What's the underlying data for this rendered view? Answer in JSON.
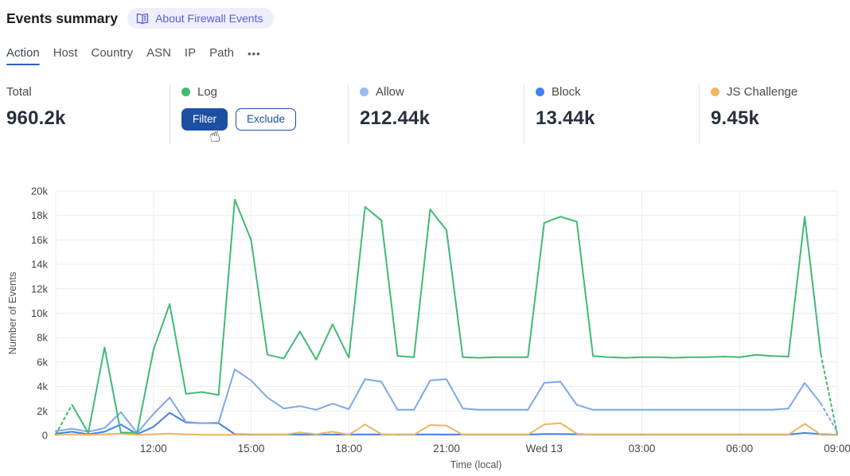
{
  "header": {
    "title": "Events summary",
    "about_badge": "About Firewall Events"
  },
  "tabs": {
    "items": [
      "Action",
      "Host",
      "Country",
      "ASN",
      "IP",
      "Path"
    ],
    "active": "Action",
    "more_label": "•••"
  },
  "stats": {
    "total": {
      "label": "Total",
      "value": "960.2k"
    },
    "cards": [
      {
        "label": "Log",
        "color": "#41ba74",
        "filter_label": "Filter",
        "exclude_label": "Exclude"
      },
      {
        "label": "Allow",
        "color": "#97baf1",
        "value": "212.44k"
      },
      {
        "label": "Block",
        "color": "#3e82ec",
        "value": "13.44k"
      },
      {
        "label": "JS Challenge",
        "color": "#f2b465",
        "value": "9.45k"
      }
    ]
  },
  "chart_data": {
    "type": "line",
    "title": "",
    "xlabel": "Time (local)",
    "ylabel": "Number of Events",
    "ylim": [
      0,
      20000
    ],
    "grid": true,
    "legend_position": "top-stats-row",
    "y_ticks": [
      "0",
      "2k",
      "4k",
      "6k",
      "8k",
      "10k",
      "12k",
      "14k",
      "16k",
      "18k",
      "20k"
    ],
    "x": [
      "09:00",
      "09:30",
      "10:00",
      "10:30",
      "11:00",
      "11:30",
      "12:00",
      "12:30",
      "13:00",
      "13:30",
      "14:00",
      "14:30",
      "15:00",
      "15:30",
      "16:00",
      "16:30",
      "17:00",
      "17:30",
      "18:00",
      "18:30",
      "19:00",
      "19:30",
      "20:00",
      "20:30",
      "21:00",
      "21:30",
      "22:00",
      "22:30",
      "23:00",
      "23:30",
      "00:00",
      "00:30",
      "01:00",
      "01:30",
      "02:00",
      "02:30",
      "03:00",
      "03:30",
      "04:00",
      "04:30",
      "05:00",
      "05:30",
      "06:00",
      "06:30",
      "07:00",
      "07:30",
      "08:00",
      "08:30",
      "09:00"
    ],
    "x_ticks": [
      {
        "index": 6,
        "label": "12:00"
      },
      {
        "index": 12,
        "label": "15:00"
      },
      {
        "index": 18,
        "label": "18:00"
      },
      {
        "index": 24,
        "label": "21:00"
      },
      {
        "index": 30,
        "label": "Wed 13"
      },
      {
        "index": 36,
        "label": "03:00"
      },
      {
        "index": 42,
        "label": "06:00"
      },
      {
        "index": 48,
        "label": "09:00"
      }
    ],
    "series": [
      {
        "name": "Log",
        "color": "#41ba74",
        "dashed_start": true,
        "dashed_end": true,
        "values": [
          100,
          2500,
          200,
          7200,
          250,
          200,
          7000,
          10750,
          3400,
          3550,
          3300,
          19300,
          16000,
          6600,
          6300,
          8500,
          6200,
          9100,
          6350,
          18700,
          17600,
          6500,
          6400,
          18500,
          16800,
          6400,
          6350,
          6400,
          6400,
          6400,
          17400,
          17900,
          17500,
          6500,
          6400,
          6350,
          6400,
          6400,
          6350,
          6400,
          6400,
          6450,
          6400,
          6600,
          6500,
          6450,
          17900,
          6600,
          100
        ]
      },
      {
        "name": "Allow",
        "color": "#7fa7ec",
        "dashed_start": false,
        "dashed_end": true,
        "values": [
          350,
          550,
          300,
          600,
          1900,
          200,
          1750,
          3100,
          1100,
          1000,
          1050,
          5400,
          4500,
          3100,
          2200,
          2400,
          2100,
          2600,
          2150,
          4600,
          4400,
          2100,
          2100,
          4500,
          4600,
          2200,
          2100,
          2100,
          2100,
          2100,
          4300,
          4400,
          2500,
          2100,
          2100,
          2100,
          2100,
          2100,
          2100,
          2100,
          2100,
          2100,
          2100,
          2100,
          2100,
          2200,
          4300,
          2600,
          300
        ]
      },
      {
        "name": "Block",
        "color": "#3e82ec",
        "dashed_start": false,
        "dashed_end": false,
        "values": [
          150,
          300,
          100,
          300,
          900,
          100,
          700,
          1850,
          1050,
          1000,
          1000,
          100,
          70,
          70,
          70,
          70,
          70,
          70,
          70,
          80,
          70,
          70,
          70,
          80,
          70,
          70,
          70,
          70,
          70,
          70,
          120,
          120,
          100,
          70,
          70,
          70,
          70,
          70,
          70,
          70,
          70,
          70,
          70,
          70,
          70,
          70,
          200,
          100,
          50
        ]
      },
      {
        "name": "JS Challenge",
        "color": "#f0b560",
        "dashed_start": false,
        "dashed_end": false,
        "values": [
          50,
          100,
          50,
          100,
          150,
          50,
          100,
          150,
          100,
          50,
          50,
          50,
          50,
          50,
          50,
          250,
          100,
          300,
          50,
          900,
          100,
          50,
          50,
          850,
          800,
          50,
          50,
          50,
          50,
          50,
          900,
          1000,
          150,
          50,
          50,
          50,
          50,
          50,
          50,
          50,
          50,
          50,
          50,
          50,
          50,
          50,
          950,
          50,
          30
        ]
      }
    ]
  },
  "cursor": {
    "glyph": "☝"
  }
}
